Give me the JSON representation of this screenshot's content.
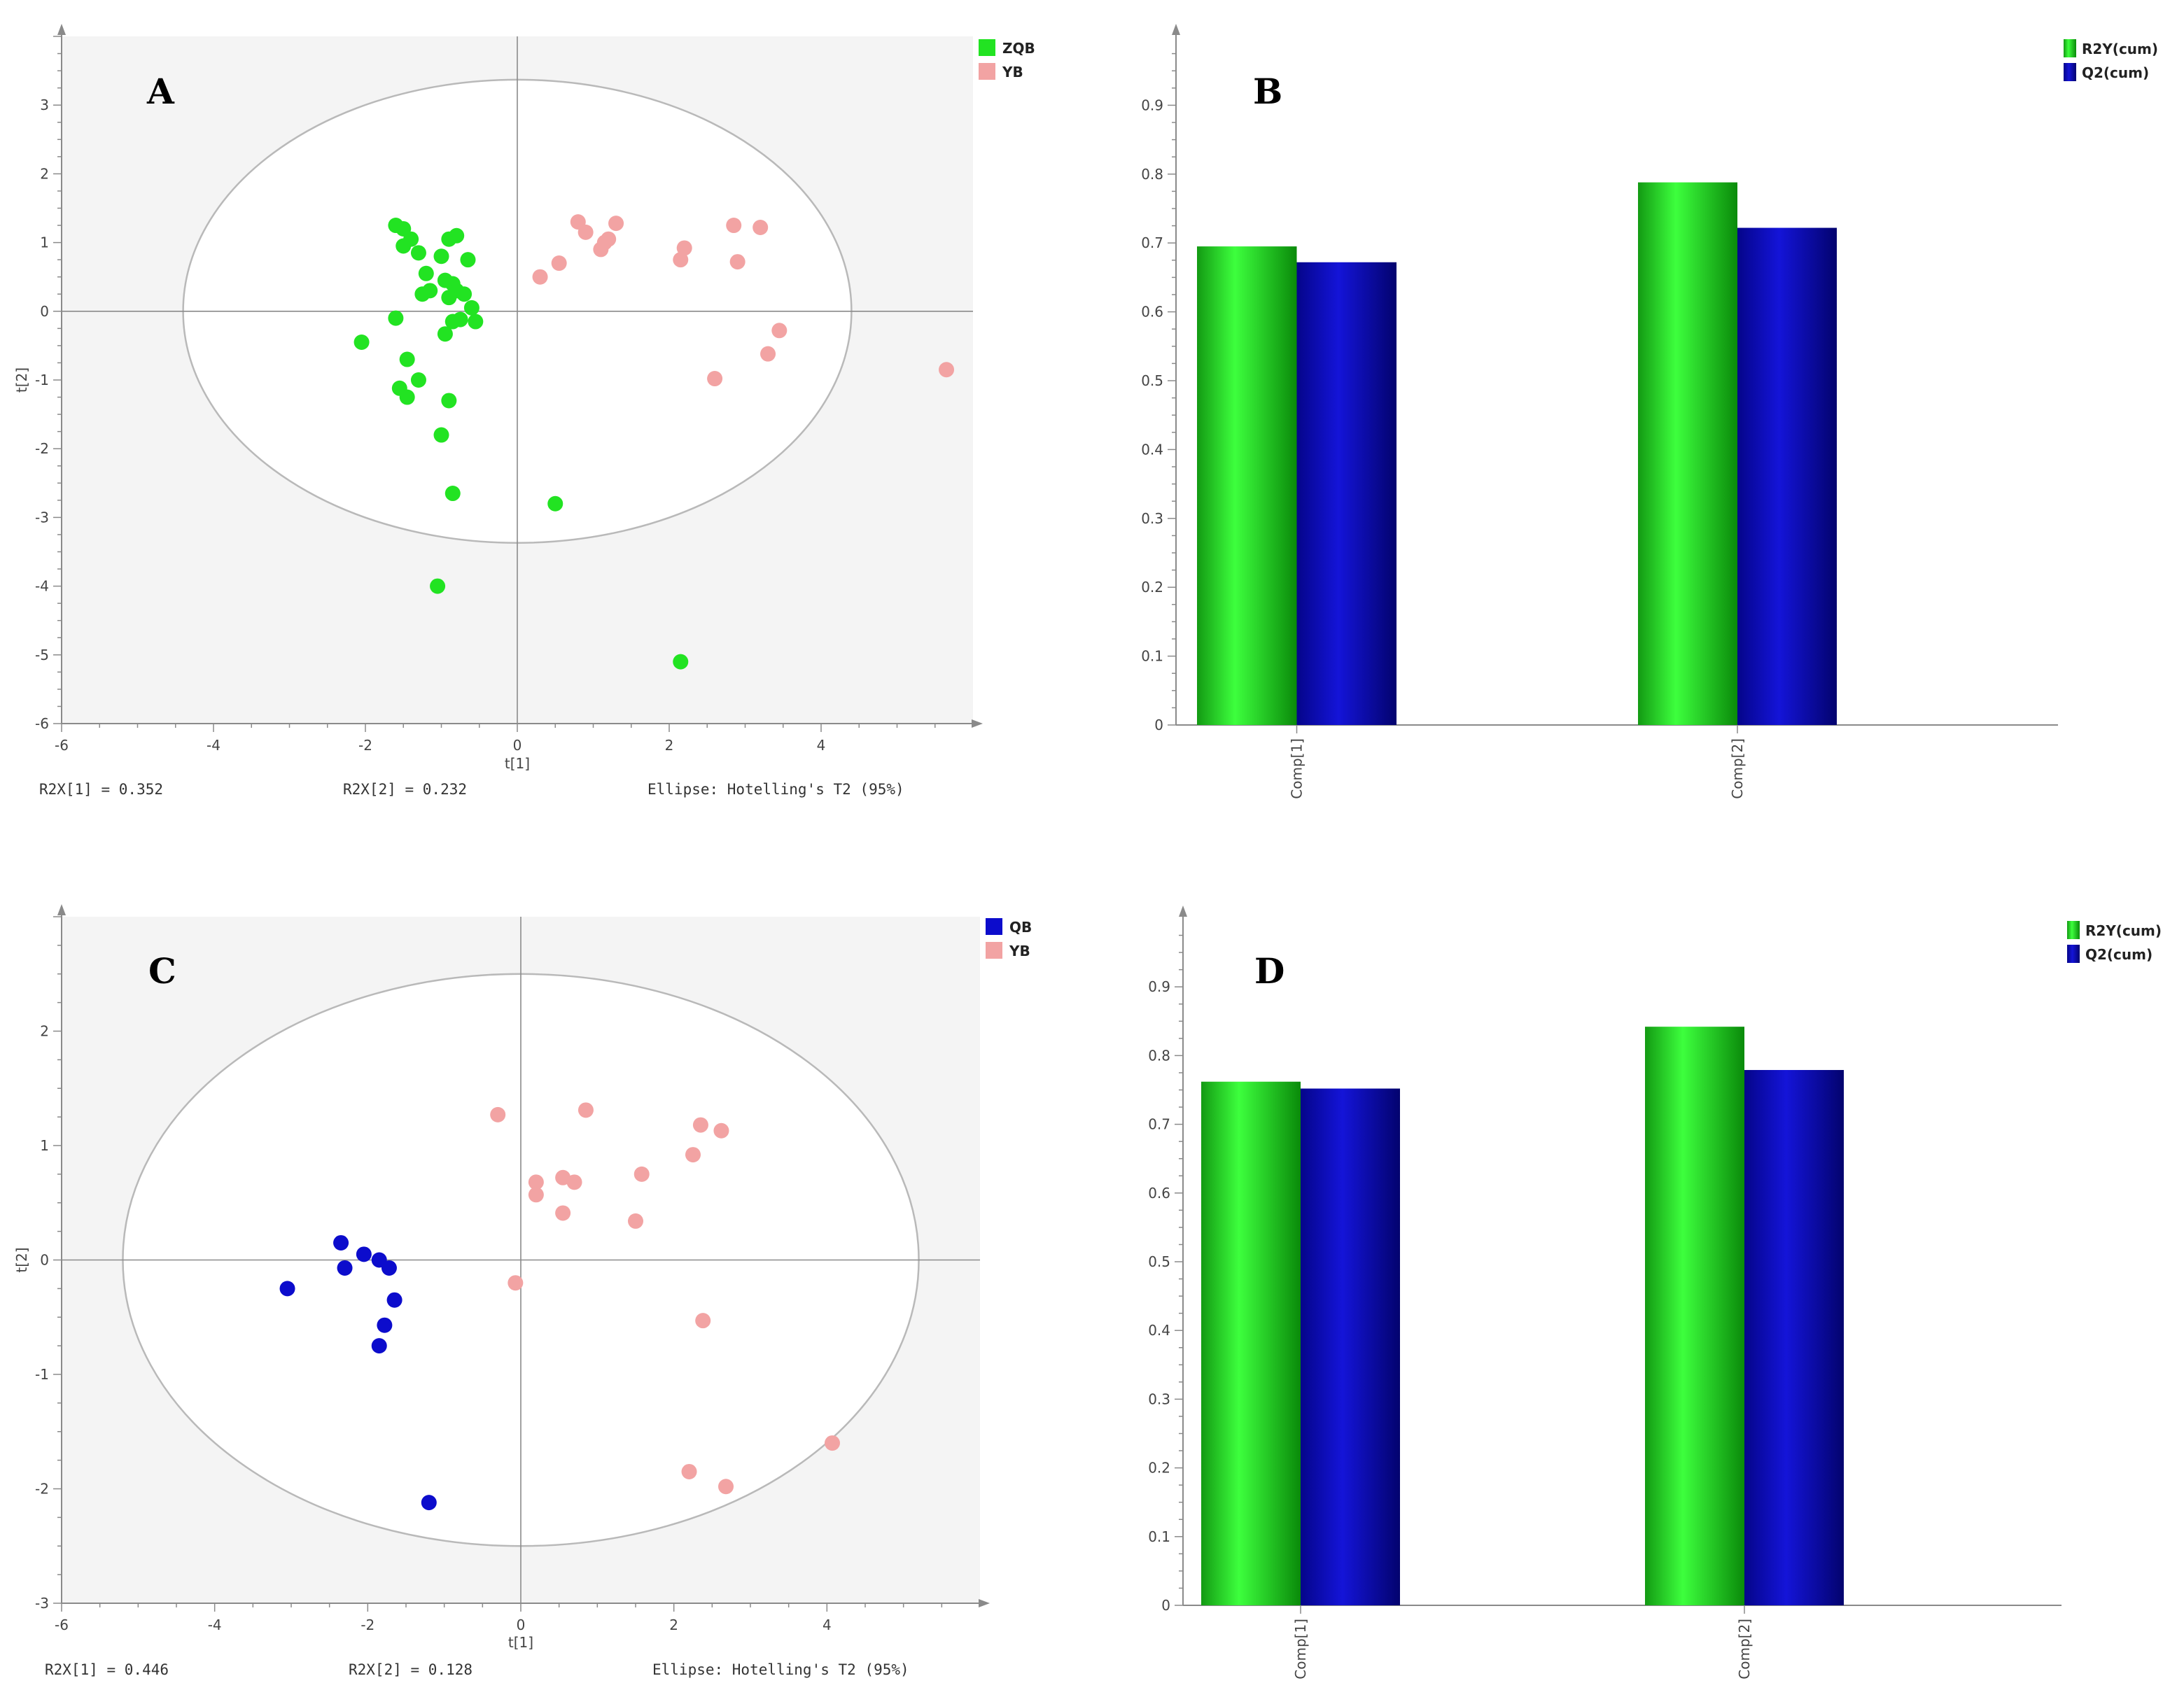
{
  "colors": {
    "green": "#22e322",
    "pink": "#f2a3a3",
    "blue": "#0c0ccc",
    "plot_bg": "#f4f4f4",
    "axis": "#8a8a8a",
    "ellipse": "#b9b9b9"
  },
  "chart_data": [
    {
      "id": "A",
      "type": "scatter",
      "panel_label": "A",
      "xlabel": "t[1]",
      "ylabel": "t[2]",
      "xlim": [
        -6,
        6
      ],
      "ylim": [
        -6,
        4
      ],
      "xticks": [
        -6,
        -4,
        -2,
        0,
        2,
        4
      ],
      "yticks": [
        -6,
        -5,
        -4,
        -3,
        -2,
        -1,
        0,
        1,
        2,
        3
      ],
      "ellipse": {
        "rx": 4.4,
        "ry": 3.37
      },
      "legend": [
        {
          "name": "ZQB",
          "color": "#22e322"
        },
        {
          "name": "YB",
          "color": "#f2a3a3"
        }
      ],
      "series": [
        {
          "name": "ZQB",
          "color": "#22e322",
          "points": [
            [
              -1.6,
              1.25
            ],
            [
              -1.5,
              1.2
            ],
            [
              -1.4,
              1.05
            ],
            [
              -1.5,
              0.95
            ],
            [
              -1.3,
              0.85
            ],
            [
              -1.2,
              0.55
            ],
            [
              -1.25,
              0.25
            ],
            [
              -1.15,
              0.3
            ],
            [
              -1.0,
              0.8
            ],
            [
              -0.9,
              1.05
            ],
            [
              -0.8,
              1.1
            ],
            [
              -0.65,
              0.75
            ],
            [
              -0.95,
              0.45
            ],
            [
              -0.85,
              0.4
            ],
            [
              -0.8,
              0.3
            ],
            [
              -0.9,
              0.2
            ],
            [
              -0.7,
              0.25
            ],
            [
              -0.6,
              0.05
            ],
            [
              -0.55,
              -0.15
            ],
            [
              -0.75,
              -0.12
            ],
            [
              -0.85,
              -0.15
            ],
            [
              -0.95,
              -0.33
            ],
            [
              -1.6,
              -0.1
            ],
            [
              -2.05,
              -0.45
            ],
            [
              -1.45,
              -0.7
            ],
            [
              -1.3,
              -1.0
            ],
            [
              -1.55,
              -1.12
            ],
            [
              -1.45,
              -1.25
            ],
            [
              -0.9,
              -1.3
            ],
            [
              -1.0,
              -1.8
            ],
            [
              -0.85,
              -2.65
            ],
            [
              0.5,
              -2.8
            ],
            [
              -1.05,
              -4.0
            ],
            [
              2.15,
              -5.1
            ]
          ]
        },
        {
          "name": "YB",
          "color": "#f2a3a3",
          "points": [
            [
              0.3,
              0.5
            ],
            [
              0.55,
              0.7
            ],
            [
              0.8,
              1.3
            ],
            [
              0.9,
              1.15
            ],
            [
              1.1,
              0.9
            ],
            [
              1.15,
              1.0
            ],
            [
              1.2,
              1.05
            ],
            [
              1.3,
              1.28
            ],
            [
              2.15,
              0.75
            ],
            [
              2.2,
              0.92
            ],
            [
              2.85,
              1.25
            ],
            [
              2.9,
              0.72
            ],
            [
              3.2,
              1.22
            ],
            [
              3.45,
              -0.28
            ],
            [
              3.3,
              -0.62
            ],
            [
              2.6,
              -0.98
            ],
            [
              5.65,
              -0.85
            ]
          ]
        }
      ],
      "footer": [
        "R2X[1] = 0.352",
        "R2X[2] = 0.232",
        "Ellipse: Hotelling's T2 (95%)"
      ]
    },
    {
      "id": "B",
      "type": "bar",
      "panel_label": "B",
      "categories": [
        "Comp[1]",
        "Comp[2]"
      ],
      "ylim": [
        0,
        1
      ],
      "yticks": [
        0,
        0.1,
        0.2,
        0.3,
        0.4,
        0.5,
        0.6,
        0.7,
        0.8,
        0.9
      ],
      "series": [
        {
          "name": "R2Y(cum)",
          "color": "#22e322",
          "values": [
            0.695,
            0.788
          ]
        },
        {
          "name": "Q2(cum)",
          "color": "#0c0ccc",
          "values": [
            0.672,
            0.722
          ]
        }
      ]
    },
    {
      "id": "C",
      "type": "scatter",
      "panel_label": "C",
      "xlabel": "t[1]",
      "ylabel": "t[2]",
      "xlim": [
        -6,
        6
      ],
      "ylim": [
        -3,
        3
      ],
      "xticks": [
        -6,
        -4,
        -2,
        0,
        2,
        4
      ],
      "yticks": [
        -3,
        -2,
        -1,
        0,
        1,
        2
      ],
      "ellipse": {
        "rx": 5.2,
        "ry": 2.5
      },
      "legend": [
        {
          "name": "QB",
          "color": "#0c0ccc"
        },
        {
          "name": "YB",
          "color": "#f2a3a3"
        }
      ],
      "series": [
        {
          "name": "QB",
          "color": "#0c0ccc",
          "points": [
            [
              -2.35,
              0.15
            ],
            [
              -2.3,
              -0.07
            ],
            [
              -2.05,
              0.05
            ],
            [
              -1.85,
              0.0
            ],
            [
              -1.72,
              -0.07
            ],
            [
              -1.65,
              -0.35
            ],
            [
              -1.78,
              -0.57
            ],
            [
              -1.85,
              -0.75
            ],
            [
              -3.05,
              -0.25
            ],
            [
              -1.2,
              -2.12
            ]
          ]
        },
        {
          "name": "YB",
          "color": "#f2a3a3",
          "points": [
            [
              -0.3,
              1.27
            ],
            [
              0.2,
              0.68
            ],
            [
              0.2,
              0.57
            ],
            [
              0.55,
              0.72
            ],
            [
              0.7,
              0.68
            ],
            [
              0.55,
              0.41
            ],
            [
              0.85,
              1.31
            ],
            [
              1.5,
              0.34
            ],
            [
              1.58,
              0.75
            ],
            [
              2.25,
              0.92
            ],
            [
              2.35,
              1.18
            ],
            [
              2.62,
              1.13
            ],
            [
              -0.07,
              -0.2
            ],
            [
              2.38,
              -0.53
            ],
            [
              4.07,
              -1.6
            ],
            [
              2.2,
              -1.85
            ],
            [
              2.68,
              -1.98
            ]
          ]
        }
      ],
      "footer": [
        "R2X[1] = 0.446",
        "R2X[2] = 0.128",
        "Ellipse: Hotelling's T2 (95%)"
      ]
    },
    {
      "id": "D",
      "type": "bar",
      "panel_label": "D",
      "categories": [
        "Comp[1]",
        "Comp[2]"
      ],
      "ylim": [
        0,
        1
      ],
      "yticks": [
        0,
        0.1,
        0.2,
        0.3,
        0.4,
        0.5,
        0.6,
        0.7,
        0.8,
        0.9
      ],
      "series": [
        {
          "name": "R2Y(cum)",
          "color": "#22e322",
          "values": [
            0.762,
            0.842
          ]
        },
        {
          "name": "Q2(cum)",
          "color": "#0c0ccc",
          "values": [
            0.752,
            0.779
          ]
        }
      ]
    }
  ]
}
